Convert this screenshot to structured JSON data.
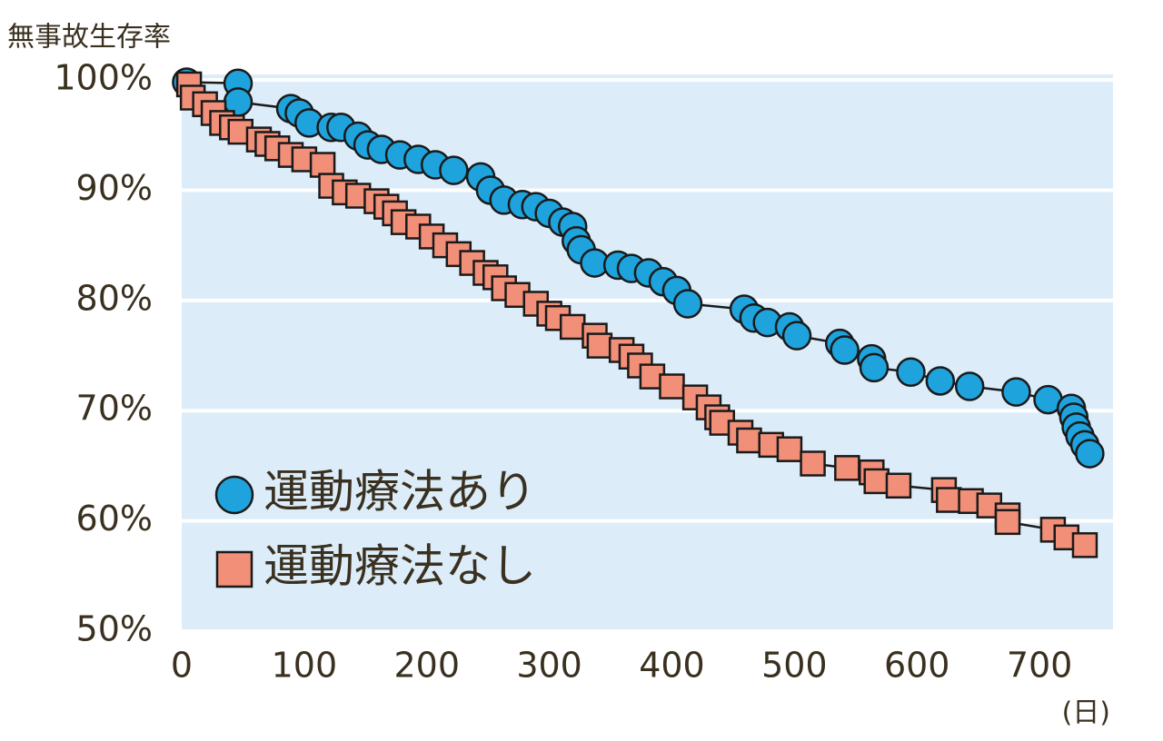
{
  "chart_data": {
    "type": "line",
    "y_label": "無事故生存率",
    "x_label": "(日)",
    "xlim": [
      0,
      760
    ],
    "xticks": [
      0,
      100,
      200,
      300,
      400,
      500,
      600,
      700
    ],
    "ylim": [
      50,
      100.5
    ],
    "yticks": [
      {
        "value": 50,
        "label": "50%"
      },
      {
        "value": 60,
        "label": "60%"
      },
      {
        "value": 70,
        "label": "70%"
      },
      {
        "value": 80,
        "label": "80%"
      },
      {
        "value": 90,
        "label": "90%"
      },
      {
        "value": 100,
        "label": "100%"
      }
    ],
    "grid": true,
    "legend": "lower left",
    "series": [
      {
        "name": "運動療法あり",
        "color": "#1ea3dd",
        "marker": "circle",
        "x": [
          4,
          46,
          46,
          89,
          96,
          104,
          122,
          130,
          144,
          152,
          163,
          178,
          193,
          207,
          222,
          244,
          252,
          263,
          278,
          289,
          300,
          311,
          319,
          322,
          326,
          337,
          356,
          367,
          381,
          393,
          404,
          413,
          459,
          467,
          478,
          496,
          502,
          537,
          541,
          563,
          565,
          595,
          619,
          643,
          681,
          707,
          726,
          728,
          730,
          733,
          737,
          741
        ],
        "values": [
          99.8,
          99.7,
          98,
          97.4,
          97,
          96.1,
          95.7,
          95.7,
          94.9,
          94.1,
          93.7,
          93.2,
          92.8,
          92.3,
          91.8,
          91.2,
          90,
          89.1,
          88.7,
          88.5,
          87.9,
          87.1,
          86.7,
          85.4,
          84.6,
          83.4,
          83.2,
          82.9,
          82.5,
          81.7,
          80.9,
          79.7,
          79.2,
          78.4,
          78,
          77.6,
          76.8,
          76.1,
          75.5,
          74.7,
          73.9,
          73.5,
          72.7,
          72.2,
          71.7,
          71,
          70.2,
          69.4,
          68.5,
          67.7,
          66.9,
          66.1
        ]
      },
      {
        "name": "運動療法なし",
        "color": "#f28f78",
        "marker": "square",
        "x": [
          6,
          9,
          19,
          26,
          33,
          41,
          48,
          63,
          70,
          78,
          89,
          100,
          115,
          122,
          133,
          144,
          159,
          167,
          174,
          181,
          193,
          204,
          215,
          226,
          237,
          248,
          256,
          263,
          274,
          289,
          300,
          307,
          319,
          337,
          341,
          359,
          367,
          374,
          384,
          400,
          419,
          430,
          437,
          441,
          456,
          463,
          481,
          496,
          515,
          543,
          563,
          567,
          585,
          622,
          626,
          644,
          659,
          674,
          674,
          711,
          722,
          737
        ],
        "values": [
          99.6,
          98.4,
          97.8,
          97,
          96.1,
          95.7,
          95.3,
          94.6,
          94.2,
          93.8,
          93.2,
          92.8,
          92.3,
          90.4,
          89.8,
          89.5,
          89,
          88.5,
          87.9,
          87.1,
          86.7,
          85.8,
          85,
          84.2,
          83.4,
          82.5,
          82.1,
          81.1,
          80.5,
          79.7,
          78.8,
          78.4,
          77.6,
          76.8,
          75.9,
          75.5,
          74.9,
          74.1,
          73.1,
          72.2,
          71.2,
          70.3,
          69.4,
          68.9,
          68,
          67.3,
          66.9,
          66.5,
          65.2,
          64.8,
          64.4,
          63.6,
          63.2,
          62.8,
          61.9,
          61.8,
          61.4,
          60.5,
          59.9,
          59.2,
          58.5,
          57.8
        ]
      }
    ]
  }
}
